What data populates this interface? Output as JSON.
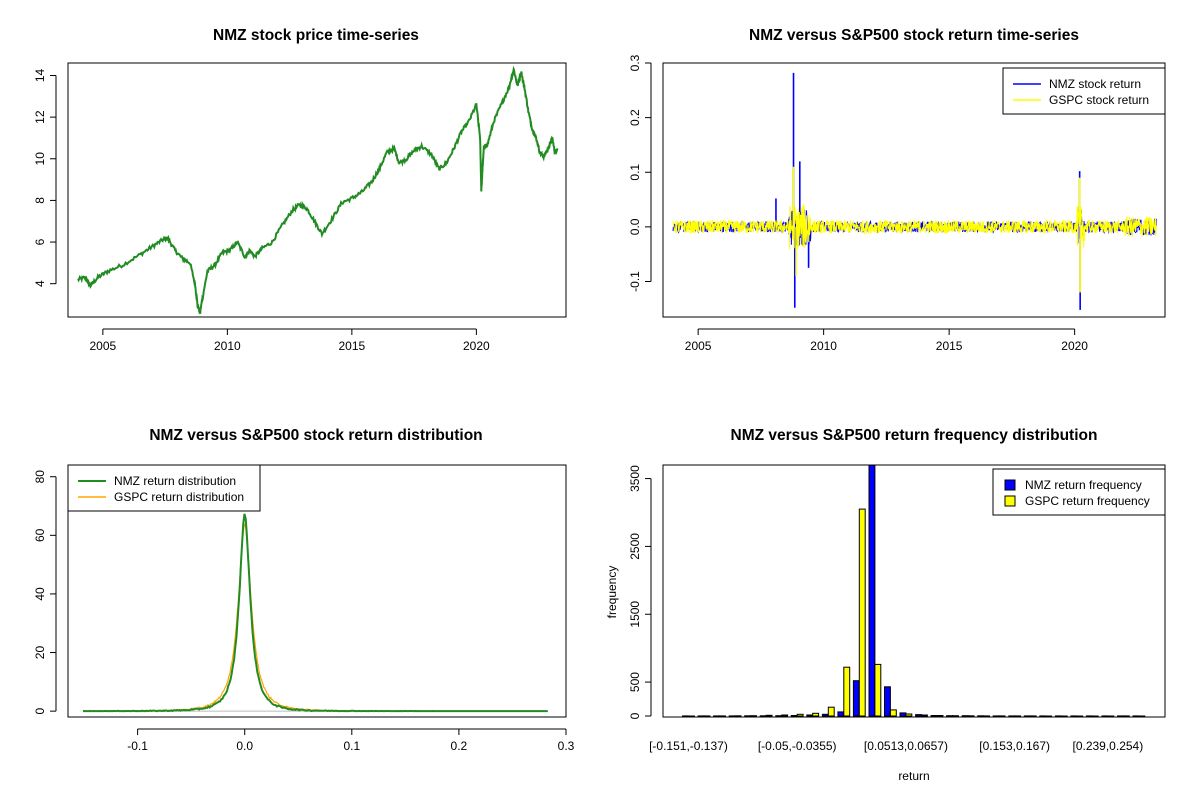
{
  "chart_data": [
    {
      "type": "line",
      "title": "NMZ stock price time-series",
      "xlabel": "",
      "ylabel": "",
      "xlim": [
        2003.6,
        2023.6
      ],
      "ylim": [
        2.4,
        14.6
      ],
      "x_ticks": [
        2005,
        2010,
        2015,
        2020
      ],
      "x_tick_labels": [
        "2005",
        "2010",
        "2015",
        "2020"
      ],
      "y_ticks": [
        4,
        6,
        8,
        10,
        12,
        14
      ],
      "y_tick_labels": [
        "4",
        "6",
        "8",
        "10",
        "12",
        "14"
      ],
      "color": "#228B22",
      "series": [
        {
          "name": "NMZ",
          "x": [
            2004.0,
            2004.3,
            2004.5,
            2004.8,
            2005.2,
            2005.8,
            2006.5,
            2007.0,
            2007.4,
            2007.6,
            2007.9,
            2008.2,
            2008.5,
            2008.7,
            2008.8,
            2008.9,
            2009.0,
            2009.2,
            2009.5,
            2009.8,
            2010.1,
            2010.4,
            2010.7,
            2010.9,
            2011.1,
            2011.4,
            2011.8,
            2012.2,
            2012.6,
            2012.9,
            2013.2,
            2013.5,
            2013.8,
            2014.2,
            2014.6,
            2015.0,
            2015.4,
            2015.8,
            2016.1,
            2016.4,
            2016.7,
            2016.9,
            2017.2,
            2017.5,
            2017.8,
            2018.2,
            2018.5,
            2018.8,
            2019.1,
            2019.4,
            2019.7,
            2020.0,
            2020.15,
            2020.2,
            2020.25,
            2020.3,
            2020.45,
            2020.7,
            2021.0,
            2021.3,
            2021.5,
            2021.65,
            2021.8,
            2021.95,
            2022.1,
            2022.25,
            2022.4,
            2022.55,
            2022.7,
            2022.85,
            2022.95,
            2023.05,
            2023.15,
            2023.25
          ],
          "y": [
            4.2,
            4.3,
            3.9,
            4.3,
            4.6,
            4.9,
            5.4,
            5.8,
            6.1,
            6.2,
            5.6,
            5.2,
            5.0,
            4.0,
            3.0,
            2.6,
            3.3,
            4.6,
            4.9,
            5.5,
            5.6,
            6.0,
            5.3,
            5.6,
            5.3,
            5.7,
            6.0,
            6.8,
            7.5,
            7.8,
            7.6,
            7.0,
            6.4,
            7.1,
            7.9,
            8.1,
            8.4,
            8.9,
            9.5,
            10.3,
            10.5,
            9.8,
            10.0,
            10.4,
            10.6,
            10.2,
            9.5,
            9.8,
            10.5,
            11.3,
            11.8,
            12.6,
            11.0,
            8.5,
            9.6,
            10.5,
            10.7,
            11.8,
            12.6,
            13.4,
            14.3,
            13.5,
            14.2,
            13.3,
            12.2,
            11.4,
            11.0,
            10.3,
            10.1,
            10.4,
            10.7,
            11.0,
            10.3,
            10.5
          ]
        }
      ]
    },
    {
      "type": "line",
      "title": "NMZ versus S&P500 stock return time-series",
      "xlabel": "",
      "ylabel": "",
      "xlim": [
        2003.6,
        2023.6
      ],
      "ylim": [
        -0.165,
        0.3
      ],
      "x_ticks": [
        2005,
        2010,
        2015,
        2020
      ],
      "x_tick_labels": [
        "2005",
        "2010",
        "2015",
        "2020"
      ],
      "y_ticks": [
        -0.1,
        0.0,
        0.1,
        0.2,
        0.3
      ],
      "y_tick_labels": [
        "-0.1",
        "0.0",
        "0.1",
        "0.2",
        "0.3"
      ],
      "legend": [
        "NMZ stock return",
        "GSPC stock return"
      ],
      "legend_position": "top-right",
      "series": [
        {
          "name": "NMZ stock return",
          "color": "#0000FF",
          "spikes": [
            {
              "x": 2008.8,
              "y": 0.282
            },
            {
              "x": 2008.85,
              "y": -0.148
            },
            {
              "x": 2009.05,
              "y": 0.12
            },
            {
              "x": 2020.2,
              "y": 0.102
            },
            {
              "x": 2020.22,
              "y": -0.152
            },
            {
              "x": 2008.1,
              "y": 0.052
            },
            {
              "x": 2009.4,
              "y": -0.075
            }
          ]
        },
        {
          "name": "GSPC stock return",
          "color": "#FFFF00",
          "spikes": [
            {
              "x": 2008.8,
              "y": 0.11
            },
            {
              "x": 2008.9,
              "y": -0.09
            },
            {
              "x": 2020.2,
              "y": 0.09
            },
            {
              "x": 2020.22,
              "y": -0.12
            }
          ]
        }
      ]
    },
    {
      "type": "line",
      "title": "NMZ versus S&P500 stock return distribution",
      "xlabel": "",
      "ylabel": "",
      "xlim": [
        -0.165,
        0.3
      ],
      "ylim": [
        -2,
        84
      ],
      "x_ticks": [
        -0.1,
        0.0,
        0.1,
        0.2,
        0.3
      ],
      "x_tick_labels": [
        "-0.1",
        "0.0",
        "0.1",
        "0.2",
        "0.3"
      ],
      "y_ticks": [
        0,
        20,
        40,
        60,
        80
      ],
      "y_tick_labels": [
        "0",
        "20",
        "40",
        "60",
        "80"
      ],
      "legend": [
        "NMZ return distribution",
        "GSPC return distribution"
      ],
      "legend_position": "top-left",
      "series": [
        {
          "name": "NMZ return distribution",
          "color": "#228B22",
          "peak": 68,
          "center": 0.0,
          "spread": 0.0075,
          "xmin": -0.151,
          "xmax": 0.283
        },
        {
          "name": "GSPC return distribution",
          "color": "#FFA500",
          "peak": 64,
          "center": 0.0,
          "spread": 0.009,
          "xmin": -0.13,
          "xmax": 0.115
        }
      ]
    },
    {
      "type": "bar",
      "title": "NMZ versus S&P500 return frequency distribution",
      "xlabel": "return",
      "ylabel": "frequency",
      "ylim": [
        0,
        3700
      ],
      "y_ticks": [
        0,
        500,
        1500,
        2500,
        3500
      ],
      "y_tick_labels": [
        "0",
        "500",
        "1500",
        "2500",
        "3500"
      ],
      "x_tick_labels": [
        "[-0.151,-0.137)",
        "[-0.05,-0.0355)",
        "[0.0513,0.0657)",
        "[0.153,0.167)",
        "[0.239,0.254)"
      ],
      "x_tick_category_index": [
        0,
        7,
        14,
        21,
        27
      ],
      "legend": [
        "NMZ return frequency",
        "GSPC return frequency"
      ],
      "legend_position": "top-right",
      "category_count": 30,
      "series": [
        {
          "name": "NMZ return frequency",
          "color": "#0000FF",
          "values": [
            1,
            1,
            2,
            1,
            3,
            3,
            5,
            8,
            15,
            25,
            60,
            520,
            3700,
            430,
            45,
            20,
            8,
            5,
            4,
            3,
            2,
            1,
            1,
            1,
            1,
            1,
            1,
            1,
            1,
            1
          ]
        },
        {
          "name": "GSPC return frequency",
          "color": "#FFFF00",
          "values": [
            0,
            1,
            2,
            3,
            5,
            10,
            15,
            25,
            40,
            130,
            720,
            3050,
            760,
            90,
            30,
            15,
            8,
            5,
            3,
            2,
            1,
            1,
            1,
            0,
            0,
            0,
            0,
            0,
            1,
            0
          ]
        }
      ]
    }
  ]
}
